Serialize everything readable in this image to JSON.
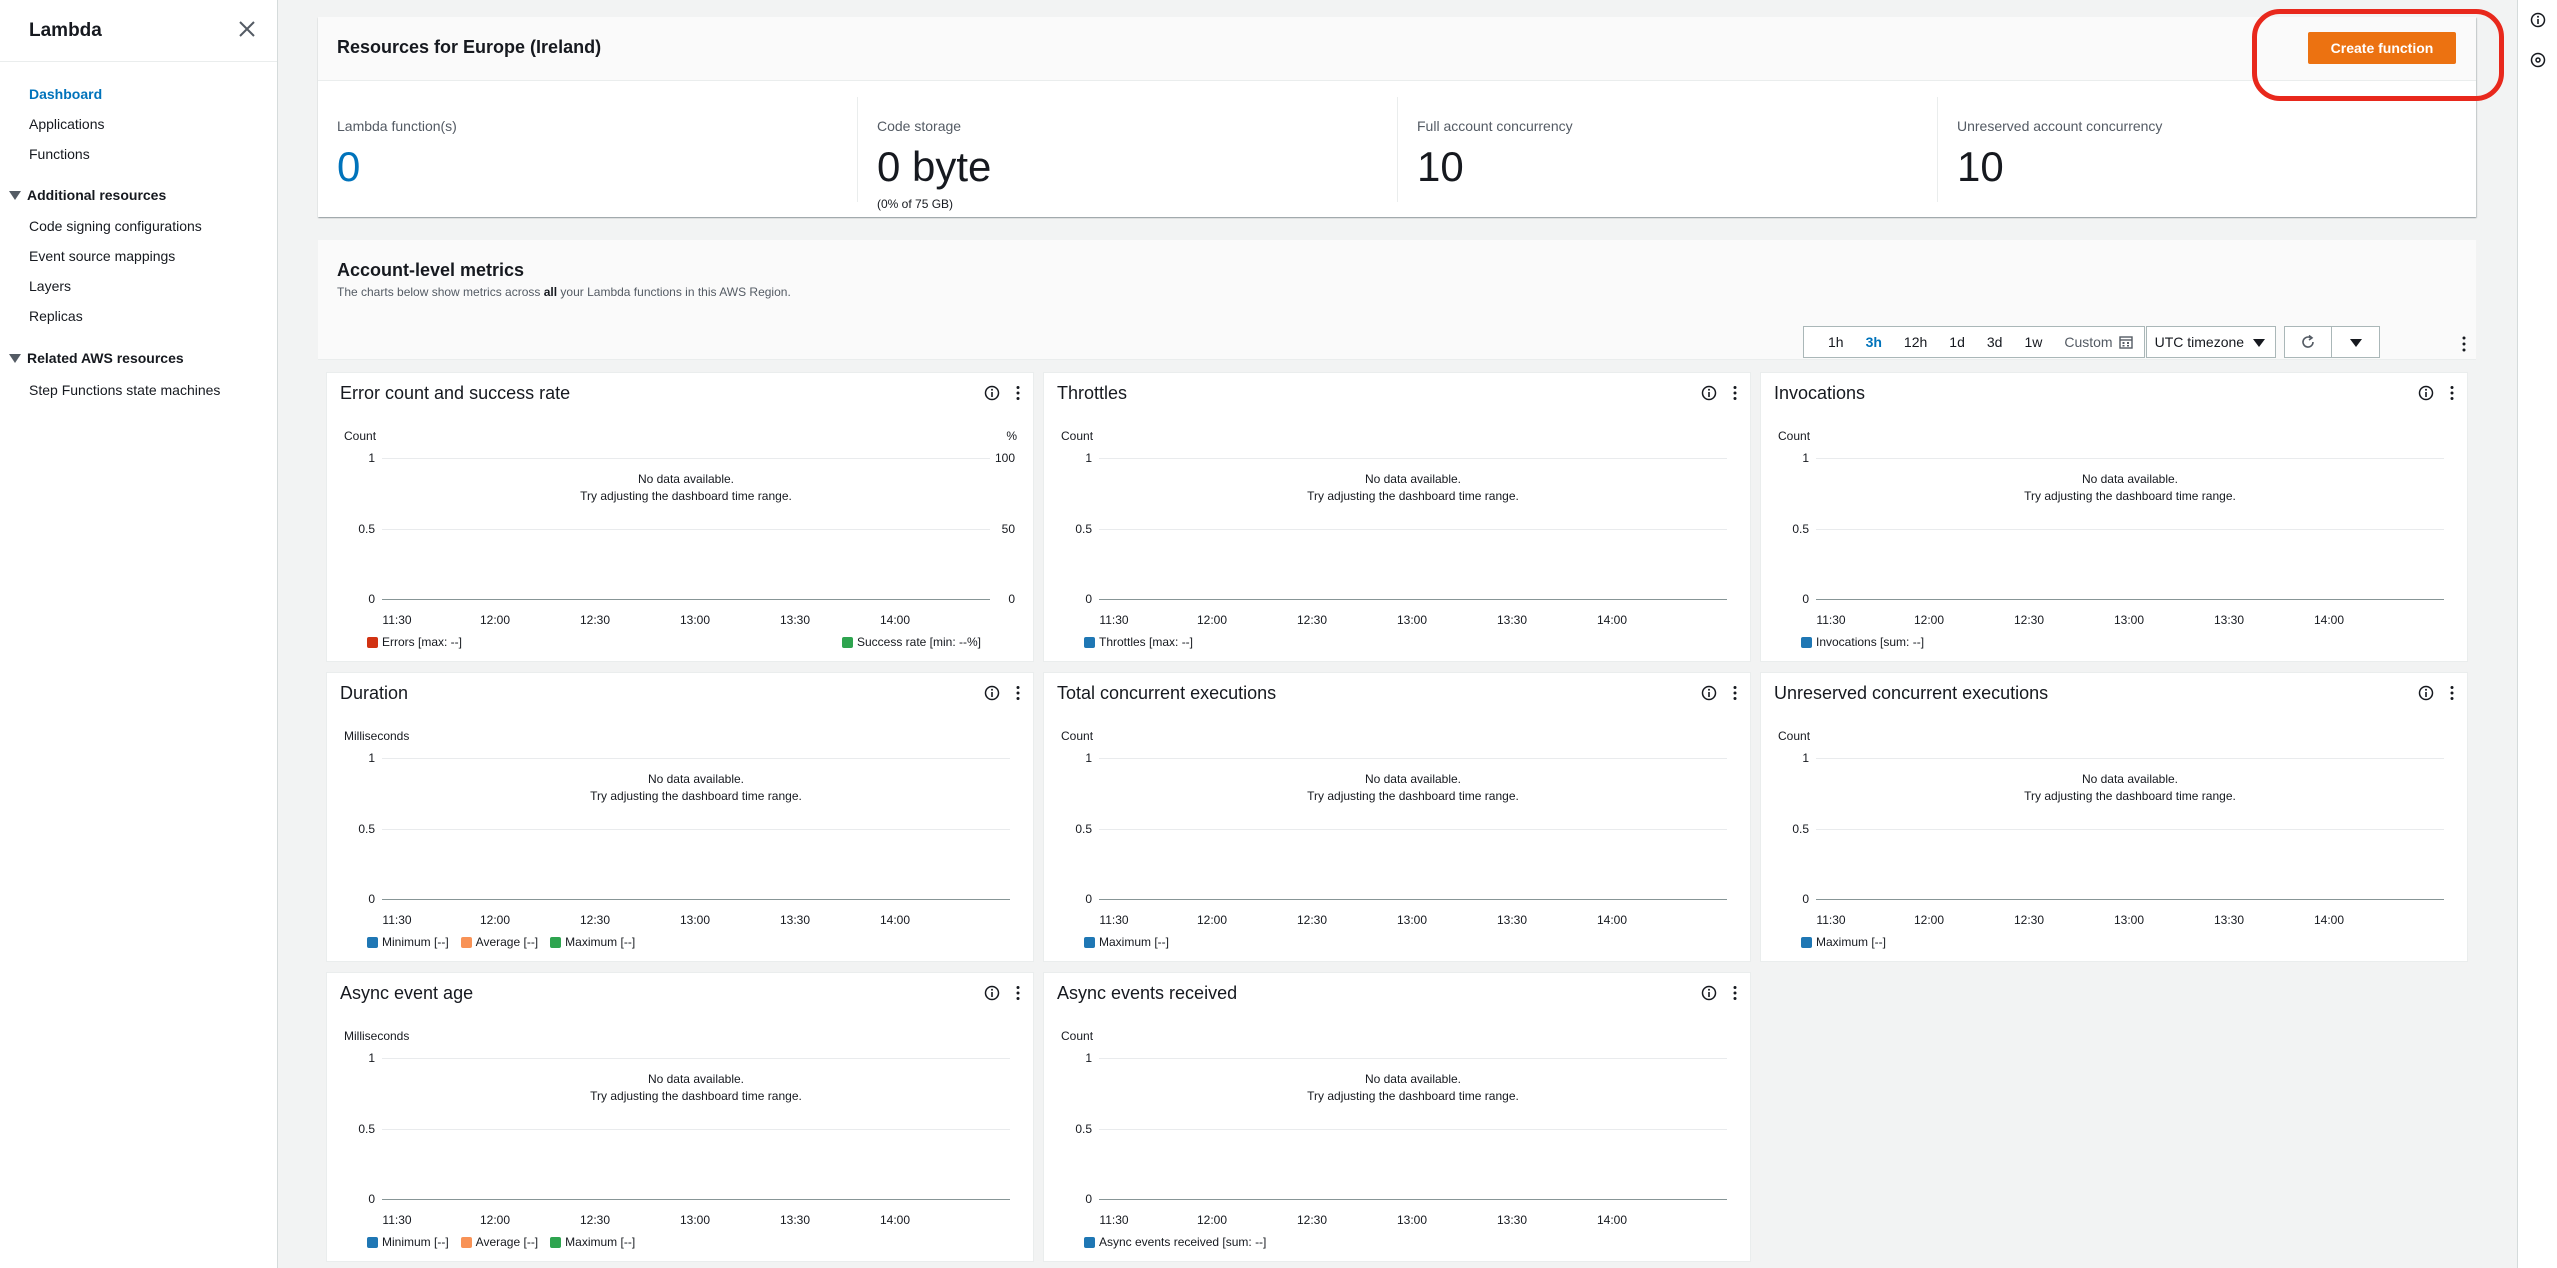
{
  "sidebar": {
    "title": "Lambda",
    "items": [
      {
        "label": "Dashboard",
        "active": true
      },
      {
        "label": "Applications"
      },
      {
        "label": "Functions"
      }
    ],
    "sections": [
      {
        "label": "Additional resources",
        "items": [
          {
            "label": "Code signing configurations"
          },
          {
            "label": "Event source mappings"
          },
          {
            "label": "Layers"
          },
          {
            "label": "Replicas"
          }
        ]
      },
      {
        "label": "Related AWS resources",
        "items": [
          {
            "label": "Step Functions state machines"
          }
        ]
      }
    ]
  },
  "resources": {
    "title": "Resources for Europe (Ireland)",
    "create_label": "Create function",
    "stats": [
      {
        "label": "Lambda function(s)",
        "value": "0"
      },
      {
        "label": "Code storage",
        "value": "0 byte",
        "sub": "(0% of 75 GB)"
      },
      {
        "label": "Full account concurrency",
        "value": "10"
      },
      {
        "label": "Unreserved account concurrency",
        "value": "10"
      }
    ]
  },
  "metrics": {
    "title": "Account-level metrics",
    "desc_pre": "The charts below show metrics across ",
    "desc_bold": "all",
    "desc_post": " your Lambda functions in this AWS Region.",
    "ranges": [
      "1h",
      "3h",
      "12h",
      "1d",
      "3d",
      "1w"
    ],
    "active_range": "3h",
    "custom_label": "Custom",
    "timezone": "UTC timezone",
    "nodata_1": "No data available.",
    "nodata_2": "Try adjusting the dashboard time range.",
    "x_ticks": [
      "11:30",
      "12:00",
      "12:30",
      "13:00",
      "13:30",
      "14:00"
    ],
    "colors": {
      "red": "#d13212",
      "orange": "#f89256",
      "green": "#1d8102",
      "blue": "#1f77b4"
    },
    "widgets": [
      {
        "title": "Error count and success rate",
        "unit": "Count",
        "unit_r": "%",
        "yticks": [
          "1",
          "0.5",
          "0"
        ],
        "yticks_r": [
          "100",
          "50",
          "0"
        ],
        "legend": [
          {
            "label": "Errors [max: --]",
            "color": "#d13212"
          }
        ],
        "legend_r": [
          {
            "label": "Success rate [min: --%]",
            "color": "#2ea44f"
          }
        ]
      },
      {
        "title": "Throttles",
        "unit": "Count",
        "yticks": [
          "1",
          "0.5",
          "0"
        ],
        "legend": [
          {
            "label": "Throttles [max: --]",
            "color": "#1f77b4"
          }
        ]
      },
      {
        "title": "Invocations",
        "unit": "Count",
        "yticks": [
          "1",
          "0.5",
          "0"
        ],
        "legend": [
          {
            "label": "Invocations [sum: --]",
            "color": "#1f77b4"
          }
        ]
      },
      {
        "title": "Duration",
        "unit": "Milliseconds",
        "yticks": [
          "1",
          "0.5",
          "0"
        ],
        "legend": [
          {
            "label": "Minimum [--]",
            "color": "#1f77b4"
          },
          {
            "label": "Average [--]",
            "color": "#f89256"
          },
          {
            "label": "Maximum [--]",
            "color": "#2ea44f"
          }
        ]
      },
      {
        "title": "Total concurrent executions",
        "unit": "Count",
        "yticks": [
          "1",
          "0.5",
          "0"
        ],
        "legend": [
          {
            "label": "Maximum [--]",
            "color": "#1f77b4"
          }
        ]
      },
      {
        "title": "Unreserved concurrent executions",
        "unit": "Count",
        "yticks": [
          "1",
          "0.5",
          "0"
        ],
        "legend": [
          {
            "label": "Maximum [--]",
            "color": "#1f77b4"
          }
        ]
      },
      {
        "title": "Async event age",
        "unit": "Milliseconds",
        "yticks": [
          "1",
          "0.5",
          "0"
        ],
        "legend": [
          {
            "label": "Minimum [--]",
            "color": "#1f77b4"
          },
          {
            "label": "Average [--]",
            "color": "#f89256"
          },
          {
            "label": "Maximum [--]",
            "color": "#2ea44f"
          }
        ]
      },
      {
        "title": "Async events received",
        "unit": "Count",
        "yticks": [
          "1",
          "0.5",
          "0"
        ],
        "legend": [
          {
            "label": "Async events received [sum: --]",
            "color": "#1f77b4"
          }
        ]
      }
    ]
  },
  "icons": {
    "close": "close-icon",
    "info": "info-icon",
    "settings": "settings-icon",
    "calendar": "calendar-icon",
    "refresh": "refresh-icon",
    "kebab": "kebab-icon"
  }
}
